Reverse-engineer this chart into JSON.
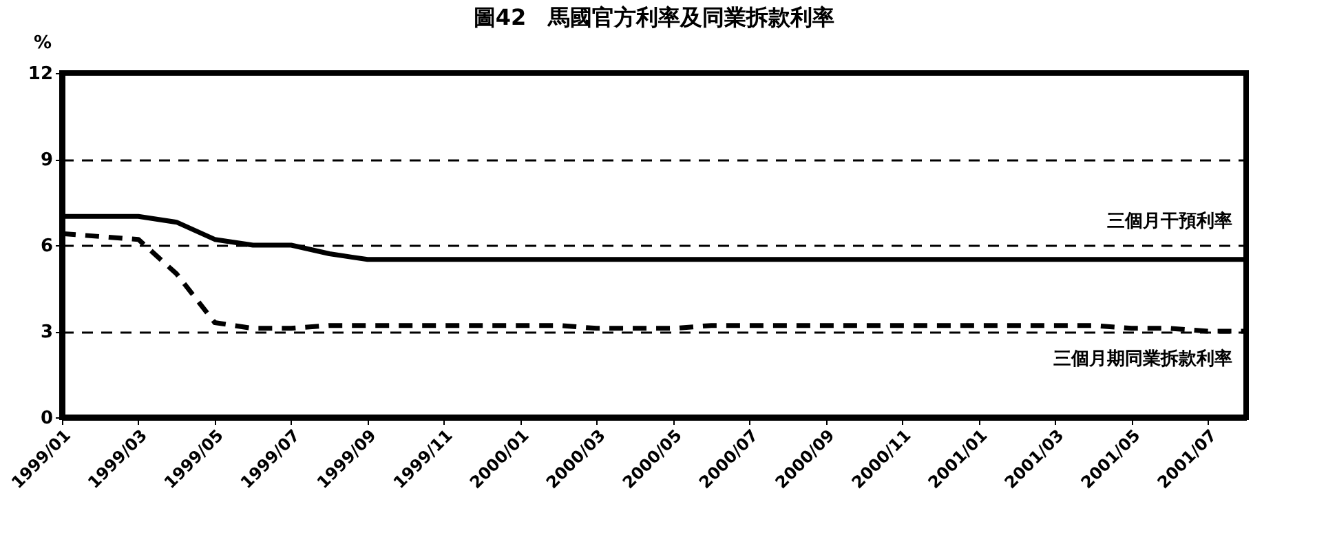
{
  "chart_data": {
    "type": "line",
    "title": "圖42　馬國官方利率及同業拆款利率",
    "ylabel": "%",
    "categories": [
      "1999/01",
      null,
      "1999/03",
      null,
      "1999/05",
      null,
      "1999/07",
      null,
      "1999/09",
      null,
      "1999/11",
      null,
      "2000/01",
      null,
      "2000/03",
      null,
      "2000/05",
      null,
      "2000/07",
      null,
      "2000/09",
      null,
      "2000/11",
      null,
      "2001/01",
      null,
      "2001/03",
      null,
      "2001/05",
      null,
      "2001/07",
      null
    ],
    "series": [
      {
        "name": "三個月干預利率",
        "color": "#000000",
        "line_style": "solid",
        "values": [
          7.0,
          7.0,
          7.0,
          6.8,
          6.2,
          6.0,
          6.0,
          5.7,
          5.5,
          5.5,
          5.5,
          5.5,
          5.5,
          5.5,
          5.5,
          5.5,
          5.5,
          5.5,
          5.5,
          5.5,
          5.5,
          5.5,
          5.5,
          5.5,
          5.5,
          5.5,
          5.5,
          5.5,
          5.5,
          5.5,
          5.5,
          5.5
        ]
      },
      {
        "name": "三個月期同業拆款利率",
        "color": "#000000",
        "line_style": "dashed",
        "values": [
          6.4,
          6.3,
          6.2,
          5.0,
          3.3,
          3.1,
          3.1,
          3.2,
          3.2,
          3.2,
          3.2,
          3.2,
          3.2,
          3.2,
          3.1,
          3.1,
          3.1,
          3.2,
          3.2,
          3.2,
          3.2,
          3.2,
          3.2,
          3.2,
          3.2,
          3.2,
          3.2,
          3.2,
          3.1,
          3.1,
          3.0,
          3.0
        ]
      }
    ],
    "ylim": [
      0,
      12
    ],
    "yticks": [
      0,
      3,
      6,
      9,
      12
    ],
    "grid": "y",
    "marker": "none"
  }
}
